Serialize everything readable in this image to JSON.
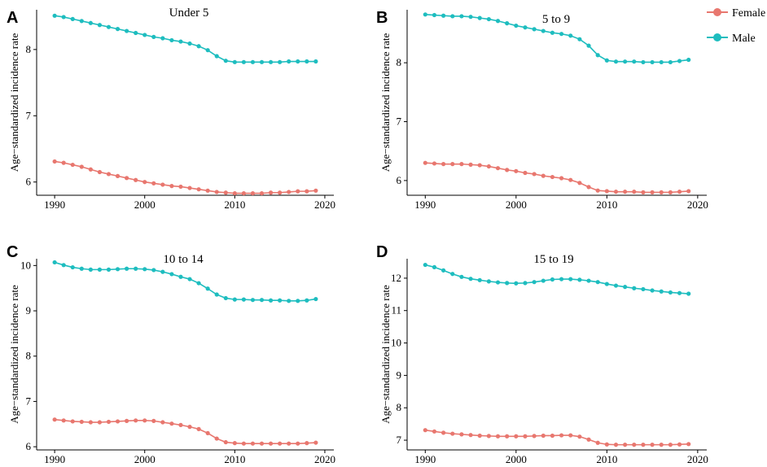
{
  "colors": {
    "female": "#E8776F",
    "male": "#1EBDBF"
  },
  "legend": [
    {
      "name": "Female",
      "color": "#E8776F"
    },
    {
      "name": "Male",
      "color": "#1EBDBF"
    }
  ],
  "chart_data": [
    {
      "type": "line",
      "panel": "A",
      "title": "Under 5",
      "xlabel": "",
      "ylabel": "Age−standardized incidence rate",
      "xlim": [
        1988,
        2021
      ],
      "ylim": [
        5.8,
        8.6
      ],
      "xticks": [
        1990,
        2000,
        2010,
        2020
      ],
      "yticks": [
        6,
        7,
        8
      ],
      "x": [
        1990,
        1991,
        1992,
        1993,
        1994,
        1995,
        1996,
        1997,
        1998,
        1999,
        2000,
        2001,
        2002,
        2003,
        2004,
        2005,
        2006,
        2007,
        2008,
        2009,
        2010,
        2011,
        2012,
        2013,
        2014,
        2015,
        2016,
        2017,
        2018,
        2019
      ],
      "series": [
        {
          "name": "Female",
          "values": [
            6.31,
            6.29,
            6.26,
            6.23,
            6.19,
            6.15,
            6.12,
            6.09,
            6.06,
            6.03,
            6.0,
            5.98,
            5.96,
            5.94,
            5.93,
            5.91,
            5.89,
            5.87,
            5.85,
            5.84,
            5.83,
            5.83,
            5.83,
            5.83,
            5.84,
            5.84,
            5.85,
            5.86,
            5.86,
            5.87
          ]
        },
        {
          "name": "Male",
          "values": [
            8.51,
            8.49,
            8.46,
            8.43,
            8.4,
            8.37,
            8.34,
            8.31,
            8.28,
            8.25,
            8.22,
            8.19,
            8.17,
            8.14,
            8.12,
            8.09,
            8.05,
            7.99,
            7.9,
            7.83,
            7.81,
            7.81,
            7.81,
            7.81,
            7.81,
            7.81,
            7.82,
            7.82,
            7.82,
            7.82
          ]
        }
      ]
    },
    {
      "type": "line",
      "panel": "B",
      "title": "5 to 9",
      "xlabel": "",
      "ylabel": "Age−standardized incidence rate",
      "xlim": [
        1988,
        2021
      ],
      "ylim": [
        5.75,
        8.9
      ],
      "xticks": [
        1990,
        2000,
        2010,
        2020
      ],
      "yticks": [
        6,
        7,
        8
      ],
      "x": [
        1990,
        1991,
        1992,
        1993,
        1994,
        1995,
        1996,
        1997,
        1998,
        1999,
        2000,
        2001,
        2002,
        2003,
        2004,
        2005,
        2006,
        2007,
        2008,
        2009,
        2010,
        2011,
        2012,
        2013,
        2014,
        2015,
        2016,
        2017,
        2018,
        2019
      ],
      "series": [
        {
          "name": "Female",
          "values": [
            6.3,
            6.29,
            6.28,
            6.28,
            6.28,
            6.27,
            6.26,
            6.24,
            6.21,
            6.18,
            6.16,
            6.13,
            6.11,
            6.08,
            6.06,
            6.04,
            6.01,
            5.96,
            5.89,
            5.83,
            5.82,
            5.81,
            5.81,
            5.81,
            5.8,
            5.8,
            5.8,
            5.8,
            5.81,
            5.82
          ]
        },
        {
          "name": "Male",
          "values": [
            8.82,
            8.81,
            8.8,
            8.79,
            8.79,
            8.78,
            8.76,
            8.74,
            8.71,
            8.67,
            8.63,
            8.6,
            8.57,
            8.54,
            8.51,
            8.49,
            8.46,
            8.4,
            8.29,
            8.13,
            8.04,
            8.02,
            8.02,
            8.02,
            8.01,
            8.01,
            8.01,
            8.01,
            8.03,
            8.05
          ]
        }
      ]
    },
    {
      "type": "line",
      "panel": "C",
      "title": "10 to 14",
      "xlabel": "",
      "ylabel": "Age−standardized incidence rate",
      "xlim": [
        1988,
        2021
      ],
      "ylim": [
        5.93,
        10.15
      ],
      "xticks": [
        1990,
        2000,
        2010,
        2020
      ],
      "yticks": [
        6,
        7,
        8,
        9,
        10
      ],
      "x": [
        1990,
        1991,
        1992,
        1993,
        1994,
        1995,
        1996,
        1997,
        1998,
        1999,
        2000,
        2001,
        2002,
        2003,
        2004,
        2005,
        2006,
        2007,
        2008,
        2009,
        2010,
        2011,
        2012,
        2013,
        2014,
        2015,
        2016,
        2017,
        2018,
        2019
      ],
      "series": [
        {
          "name": "Female",
          "values": [
            6.6,
            6.58,
            6.56,
            6.55,
            6.54,
            6.54,
            6.55,
            6.56,
            6.57,
            6.58,
            6.58,
            6.57,
            6.54,
            6.51,
            6.48,
            6.44,
            6.39,
            6.3,
            6.18,
            6.1,
            6.08,
            6.07,
            6.07,
            6.07,
            6.07,
            6.07,
            6.07,
            6.07,
            6.08,
            6.09
          ]
        },
        {
          "name": "Male",
          "values": [
            10.07,
            10.01,
            9.96,
            9.93,
            9.91,
            9.91,
            9.91,
            9.92,
            9.93,
            9.93,
            9.92,
            9.9,
            9.86,
            9.81,
            9.75,
            9.7,
            9.61,
            9.49,
            9.36,
            9.28,
            9.25,
            9.25,
            9.24,
            9.24,
            9.23,
            9.23,
            9.22,
            9.22,
            9.23,
            9.26
          ]
        }
      ]
    },
    {
      "type": "line",
      "panel": "D",
      "title": "15 to 19",
      "xlabel": "",
      "ylabel": "Age−standardized incidence rate",
      "xlim": [
        1988,
        2021
      ],
      "ylim": [
        6.7,
        12.6
      ],
      "xticks": [
        1990,
        2000,
        2010,
        2020
      ],
      "yticks": [
        7,
        8,
        9,
        10,
        11,
        12
      ],
      "x": [
        1990,
        1991,
        1992,
        1993,
        1994,
        1995,
        1996,
        1997,
        1998,
        1999,
        2000,
        2001,
        2002,
        2003,
        2004,
        2005,
        2006,
        2007,
        2008,
        2009,
        2010,
        2011,
        2012,
        2013,
        2014,
        2015,
        2016,
        2017,
        2018,
        2019
      ],
      "series": [
        {
          "name": "Female",
          "values": [
            7.31,
            7.27,
            7.23,
            7.2,
            7.18,
            7.16,
            7.14,
            7.13,
            7.12,
            7.12,
            7.12,
            7.12,
            7.13,
            7.14,
            7.14,
            7.15,
            7.15,
            7.11,
            7.02,
            6.92,
            6.87,
            6.86,
            6.86,
            6.86,
            6.86,
            6.86,
            6.86,
            6.86,
            6.87,
            6.88
          ]
        },
        {
          "name": "Male",
          "values": [
            12.41,
            12.34,
            12.24,
            12.13,
            12.04,
            11.98,
            11.94,
            11.9,
            11.87,
            11.85,
            11.84,
            11.85,
            11.88,
            11.92,
            11.96,
            11.97,
            11.97,
            11.95,
            11.92,
            11.88,
            11.82,
            11.77,
            11.73,
            11.69,
            11.66,
            11.62,
            11.59,
            11.56,
            11.54,
            11.52
          ]
        }
      ]
    }
  ]
}
